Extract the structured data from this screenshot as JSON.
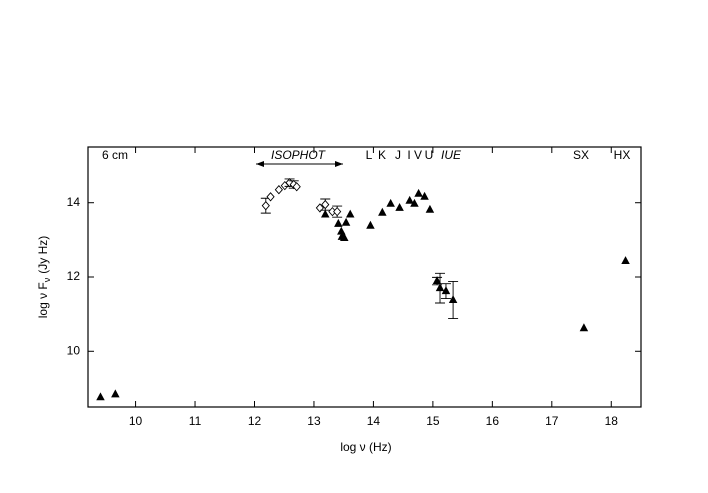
{
  "chart_data": {
    "type": "scatter",
    "xlabel": "log ν (Hz)",
    "ylabel": "log ν F",
    "ylabel_sub": "ν",
    "ylabel_unit": "(Jy Hz)",
    "annotations": [
      "6 cm",
      "ISOPHOT",
      "L",
      "K",
      "J",
      "I",
      "V",
      "U",
      "IUE",
      "SX",
      "HX"
    ],
    "xlim": [
      9.2,
      18.5
    ],
    "ylim": [
      8.5,
      15.5
    ],
    "xticks": [
      10,
      11,
      12,
      13,
      14,
      15,
      16,
      17,
      18
    ],
    "yticks": [
      10,
      12,
      14
    ],
    "series": [
      {
        "marker": "triangle",
        "color": "#000000",
        "x": [
          9.41,
          9.66,
          13.19,
          13.41,
          13.46,
          13.47,
          13.51,
          13.54,
          13.61,
          13.95,
          14.15,
          14.29,
          14.44,
          14.61,
          14.69,
          14.76,
          14.86,
          14.95,
          15.07,
          15.12,
          15.22,
          15.34,
          17.54,
          18.24
        ],
        "values": [
          8.76,
          8.84,
          13.68,
          13.43,
          13.22,
          13.08,
          13.05,
          13.46,
          13.68,
          13.38,
          13.73,
          13.97,
          13.86,
          14.05,
          13.97,
          14.24,
          14.16,
          13.81,
          11.89,
          11.7,
          11.62,
          11.38,
          10.62,
          12.43
        ],
        "errors": [
          null,
          null,
          null,
          null,
          null,
          null,
          null,
          null,
          null,
          null,
          null,
          null,
          null,
          null,
          null,
          null,
          null,
          null,
          0.1,
          0.4,
          0.2,
          0.5,
          null,
          null
        ]
      },
      {
        "marker": "diamond",
        "color": "#000000",
        "x": [
          12.19,
          12.27,
          12.41,
          12.51,
          12.59,
          12.66,
          12.71,
          13.1,
          13.19,
          13.31,
          13.39
        ],
        "values": [
          13.92,
          14.16,
          14.35,
          14.46,
          14.54,
          14.49,
          14.43,
          13.86,
          13.95,
          13.76,
          13.76
        ],
        "errors": [
          0.2,
          null,
          null,
          null,
          0.1,
          0.1,
          null,
          null,
          0.15,
          null,
          0.15
        ]
      }
    ]
  }
}
